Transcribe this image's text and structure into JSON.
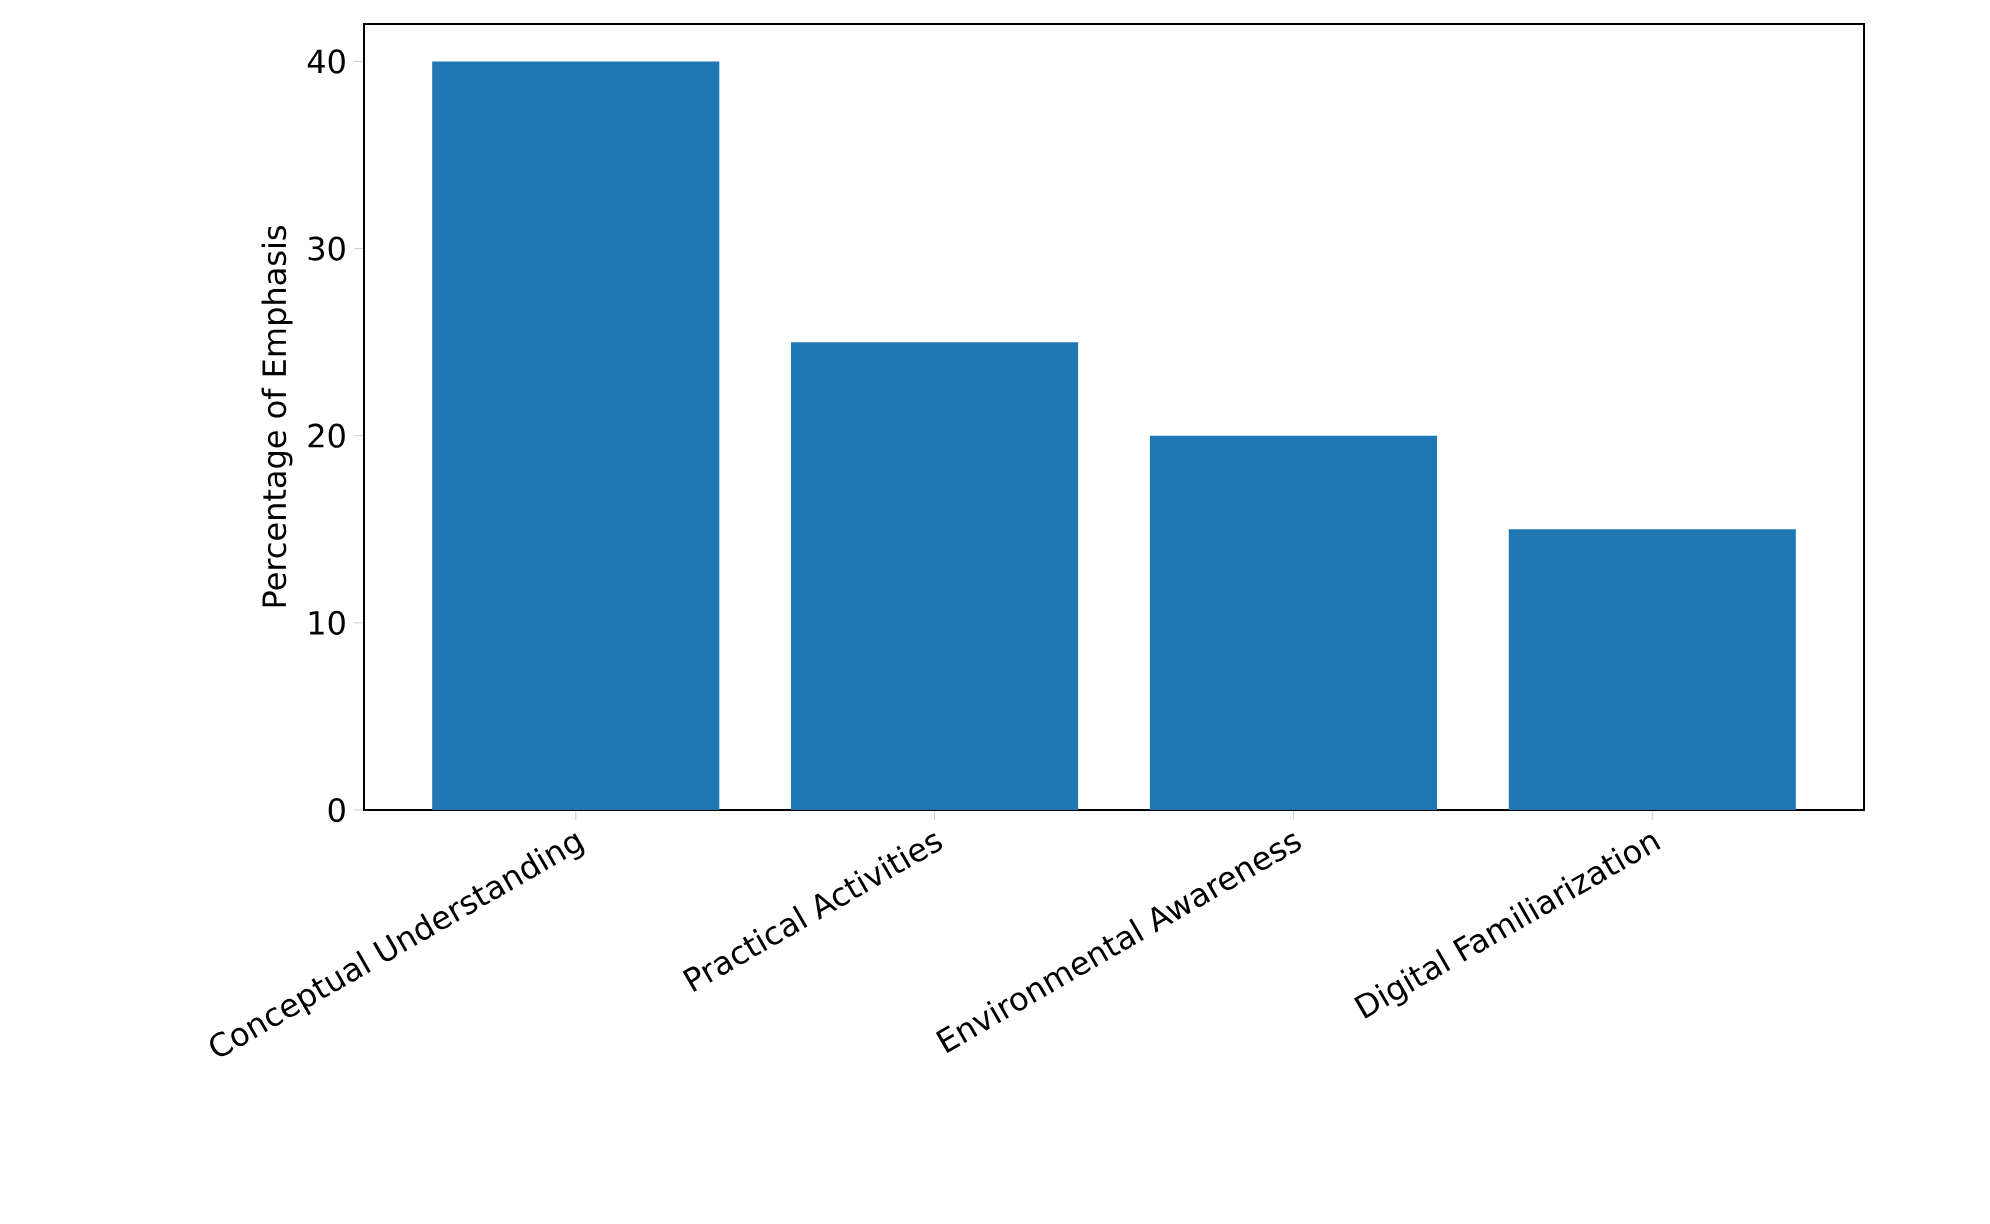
{
  "chart_data": {
    "type": "bar",
    "ylabel": "Percentage of Emphasis",
    "categories": [
      "Conceptual Understanding",
      "Practical Activities",
      "Environmental Awareness",
      "Digital Familiarization"
    ],
    "values": [
      40,
      25,
      20,
      15
    ],
    "color": "#1f77b4",
    "ylim": [
      0,
      42
    ],
    "yticks": [
      0,
      10,
      20,
      30,
      40
    ]
  }
}
